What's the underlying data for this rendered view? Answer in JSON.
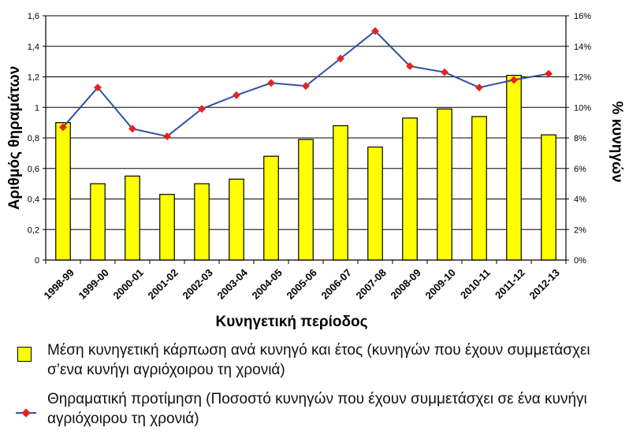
{
  "chart_data": {
    "type": "bar",
    "categories": [
      "1998-99",
      "1999-00",
      "2000-01",
      "2001-02",
      "2002-03",
      "2003-04",
      "2004-05",
      "2005-06",
      "2006-07",
      "2007-08",
      "2008-09",
      "2009-10",
      "2010-11",
      "2011-12",
      "2012-13"
    ],
    "xlabel": "Κυνηγετική περίοδος",
    "ylabel": "Αριθμός θηραμάτων",
    "y2label": "% κυνηγών",
    "ylim": [
      0,
      1.6
    ],
    "y2lim": [
      0,
      16
    ],
    "yticks": [
      "0",
      "0,2",
      "0,4",
      "0,6",
      "0,8",
      "1",
      "1,2",
      "1,4",
      "1,6"
    ],
    "y2ticks": [
      "0%",
      "2%",
      "4%",
      "6%",
      "8%",
      "10%",
      "12%",
      "14%",
      "16%"
    ],
    "grid": true,
    "series": [
      {
        "name": "Μέση κυνηγετική κάρπωση ανά κυνηγό και έτος (κυνηγών που έχουν  συμμετάσχει σ’ενα κυνήγι αγριόχοιρου τη χρονιά)",
        "type": "bar",
        "axis": "left",
        "color": "#ffff00",
        "values": [
          0.9,
          0.5,
          0.55,
          0.43,
          0.5,
          0.53,
          0.68,
          0.79,
          0.88,
          0.74,
          0.93,
          0.99,
          0.94,
          1.21,
          0.82
        ]
      },
      {
        "name": "Θηραματική προτίμηση (Ποσοστό κυνηγών που έχουν συμμετάσχει σε ένα κυνήγι αγριόχοιρου τη χρονιά)",
        "type": "line",
        "axis": "right",
        "color": "#2f4fa3",
        "marker_color": "#e52222",
        "values": [
          8.7,
          11.3,
          8.6,
          8.1,
          9.9,
          10.8,
          11.6,
          11.4,
          13.2,
          15.0,
          12.7,
          12.3,
          11.3,
          11.8,
          12.2
        ]
      }
    ]
  },
  "legend": {
    "bar_label": "Μέση κυνηγετική κάρπωση ανά κυνηγό και έτος (κυνηγών που έχουν  συμμετάσχει σ’ενα κυνήγι αγριόχοιρου τη χρονιά)",
    "line_label": "Θηραματική προτίμηση (Ποσοστό κυνηγών που έχουν συμμετάσχει σε ένα κυνήγι αγριόχοιρου τη χρονιά)"
  }
}
